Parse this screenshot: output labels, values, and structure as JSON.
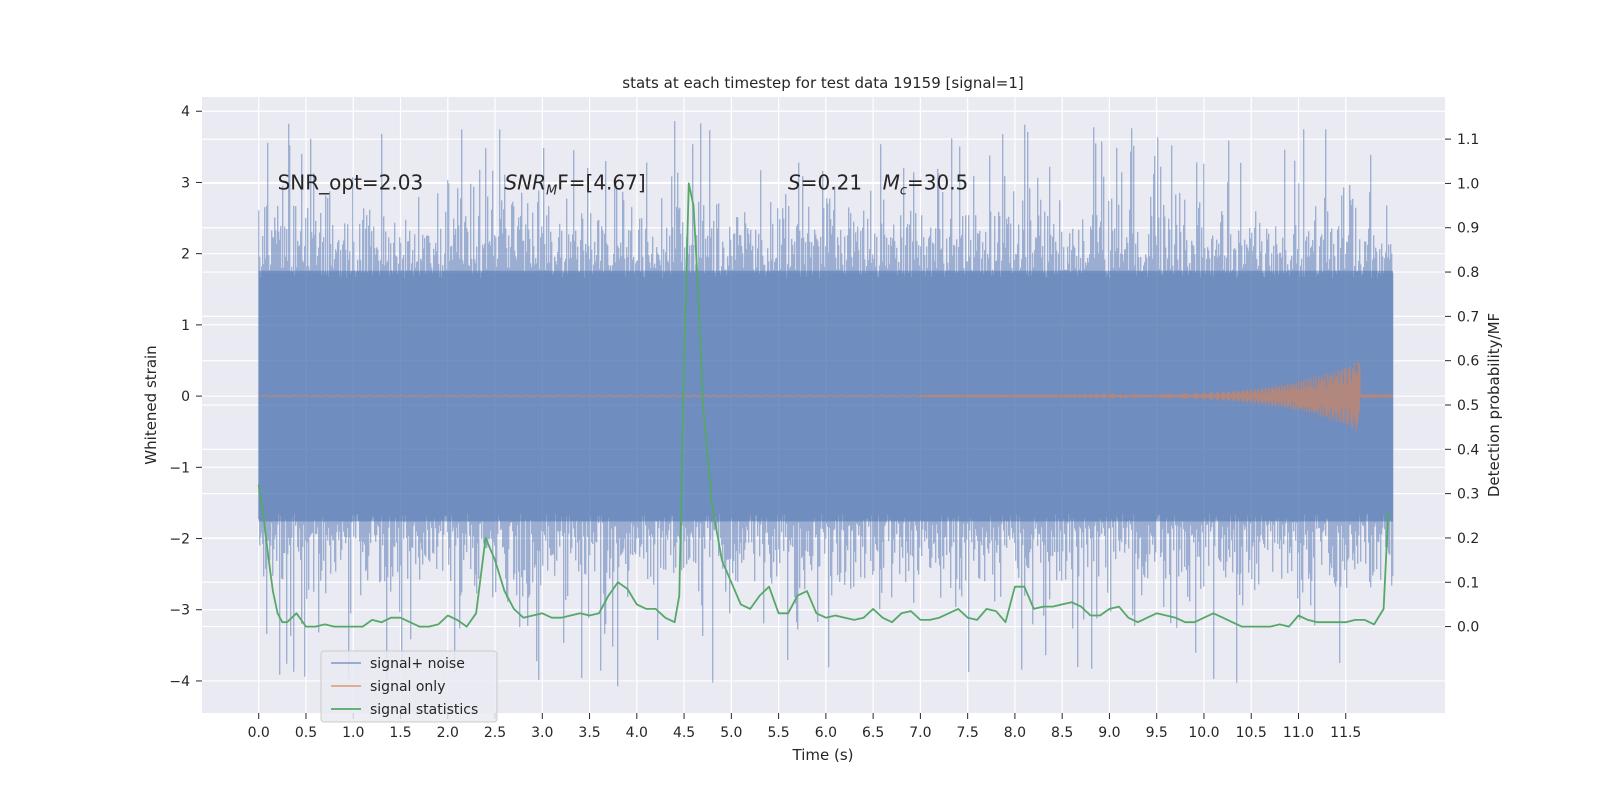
{
  "chart_data": {
    "type": "line",
    "title": "stats at each timestep for test data 19159 [signal=1]",
    "xlabel": "Time (s)",
    "ylabel_left": "Whitened strain",
    "ylabel_right": "Detection probability/MF",
    "xlim": [
      -0.6,
      12.55
    ],
    "ylim_left": [
      -4.45,
      4.2
    ],
    "ylim_right": [
      -0.195,
      1.195
    ],
    "x_ticks": [
      0.0,
      0.5,
      1.0,
      1.5,
      2.0,
      2.5,
      3.0,
      3.5,
      4.0,
      4.5,
      5.0,
      5.5,
      6.0,
      6.5,
      7.0,
      7.5,
      8.0,
      8.5,
      9.0,
      9.5,
      10.0,
      10.5,
      11.0,
      11.5
    ],
    "x_tick_labels": [
      "0.0",
      "0.5",
      "1.0",
      "1.5",
      "2.0",
      "2.5",
      "3.0",
      "3.5",
      "4.0",
      "4.5",
      "5.0",
      "5.5",
      "6.0",
      "6.5",
      "7.0",
      "7.5",
      "8.0",
      "8.5",
      "9.0",
      "9.5",
      "10.0",
      "10.5",
      "11.0",
      "11.5"
    ],
    "y_left_ticks": [
      -4,
      -3,
      -2,
      -1,
      0,
      1,
      2,
      3,
      4
    ],
    "y_left_tick_labels": [
      "−4",
      "−3",
      "−2",
      "−1",
      "0",
      "1",
      "2",
      "3",
      "4"
    ],
    "y_right_ticks": [
      0.0,
      0.1,
      0.2,
      0.3,
      0.4,
      0.5,
      0.6,
      0.7,
      0.8,
      0.9,
      1.0,
      1.1
    ],
    "y_right_tick_labels": [
      "0.0",
      "0.1",
      "0.2",
      "0.3",
      "0.4",
      "0.5",
      "0.6",
      "0.7",
      "0.8",
      "0.9",
      "1.0",
      "1.1"
    ],
    "grid": true,
    "legend_position": "lower-left",
    "annotations": [
      {
        "kind": "plain",
        "text": "SNR_opt=2.03",
        "x": 0.2,
        "y": 3.0
      },
      {
        "kind": "snrmf",
        "base": "SNR",
        "sub": "M",
        "rest": "F=[4.67]",
        "x": 2.6,
        "y": 3.0
      },
      {
        "kind": "stat",
        "italic": "S",
        "rest": "=0.21",
        "x": 5.6,
        "y": 3.0
      },
      {
        "kind": "mc",
        "base": "M",
        "sub": "c",
        "rest": "=30.5",
        "x": 6.6,
        "y": 3.0
      }
    ],
    "series": [
      {
        "name": "signal+ noise",
        "color": "#4c72b0",
        "alpha": 0.5,
        "axis": "left",
        "x_range": [
          0.0,
          12.0
        ],
        "y_range_typical": [
          -2.0,
          2.0
        ],
        "y_extremes": [
          -4.1,
          3.85
        ]
      },
      {
        "name": "signal only",
        "color": "#dd8452",
        "alpha": 0.6,
        "axis": "left",
        "x_range": [
          0.0,
          12.0
        ],
        "chirp": {
          "start_x": 7.0,
          "peak_x": 11.65,
          "peak_amplitude": 0.5
        }
      },
      {
        "name": "signal statistics",
        "color": "#55a868",
        "axis": "right",
        "x": [
          0.0,
          0.05,
          0.1,
          0.15,
          0.2,
          0.25,
          0.3,
          0.4,
          0.5,
          0.6,
          0.7,
          0.8,
          0.9,
          1.0,
          1.1,
          1.2,
          1.3,
          1.4,
          1.5,
          1.6,
          1.7,
          1.8,
          1.9,
          2.0,
          2.1,
          2.2,
          2.3,
          2.4,
          2.5,
          2.6,
          2.7,
          2.8,
          2.9,
          3.0,
          3.1,
          3.2,
          3.3,
          3.4,
          3.5,
          3.6,
          3.7,
          3.8,
          3.9,
          4.0,
          4.1,
          4.2,
          4.3,
          4.4,
          4.45,
          4.5,
          4.55,
          4.6,
          4.65,
          4.7,
          4.8,
          4.9,
          5.0,
          5.1,
          5.2,
          5.3,
          5.4,
          5.5,
          5.6,
          5.7,
          5.8,
          5.9,
          6.0,
          6.1,
          6.2,
          6.3,
          6.4,
          6.5,
          6.6,
          6.7,
          6.8,
          6.9,
          7.0,
          7.1,
          7.2,
          7.3,
          7.4,
          7.5,
          7.6,
          7.7,
          7.8,
          7.9,
          8.0,
          8.1,
          8.2,
          8.3,
          8.4,
          8.5,
          8.6,
          8.7,
          8.8,
          8.9,
          9.0,
          9.1,
          9.2,
          9.3,
          9.4,
          9.5,
          9.6,
          9.7,
          9.8,
          9.9,
          10.0,
          10.1,
          10.2,
          10.3,
          10.4,
          10.5,
          10.6,
          10.7,
          10.8,
          10.9,
          11.0,
          11.1,
          11.2,
          11.3,
          11.4,
          11.5,
          11.6,
          11.7,
          11.8,
          11.9,
          11.95
        ],
        "y": [
          0.32,
          0.25,
          0.16,
          0.08,
          0.03,
          0.01,
          0.01,
          0.03,
          0.0,
          0.0,
          0.005,
          0.0,
          0.0,
          0.0,
          0.0,
          0.015,
          0.01,
          0.02,
          0.02,
          0.01,
          0.0,
          0.0,
          0.005,
          0.025,
          0.015,
          0.0,
          0.03,
          0.2,
          0.15,
          0.08,
          0.04,
          0.02,
          0.025,
          0.03,
          0.02,
          0.02,
          0.025,
          0.03,
          0.025,
          0.03,
          0.07,
          0.1,
          0.085,
          0.05,
          0.04,
          0.04,
          0.02,
          0.01,
          0.07,
          0.6,
          1.0,
          0.95,
          0.75,
          0.5,
          0.27,
          0.15,
          0.1,
          0.05,
          0.04,
          0.07,
          0.09,
          0.03,
          0.03,
          0.07,
          0.08,
          0.03,
          0.02,
          0.025,
          0.02,
          0.015,
          0.02,
          0.04,
          0.02,
          0.01,
          0.03,
          0.035,
          0.015,
          0.015,
          0.02,
          0.03,
          0.04,
          0.02,
          0.015,
          0.04,
          0.035,
          0.01,
          0.09,
          0.09,
          0.04,
          0.045,
          0.045,
          0.05,
          0.055,
          0.045,
          0.025,
          0.025,
          0.04,
          0.045,
          0.02,
          0.01,
          0.02,
          0.03,
          0.025,
          0.02,
          0.01,
          0.01,
          0.02,
          0.03,
          0.02,
          0.01,
          0.0,
          0.0,
          0.0,
          0.0,
          0.005,
          0.0,
          0.025,
          0.015,
          0.01,
          0.01,
          0.01,
          0.01,
          0.015,
          0.015,
          0.005,
          0.04,
          0.26
        ]
      }
    ]
  }
}
